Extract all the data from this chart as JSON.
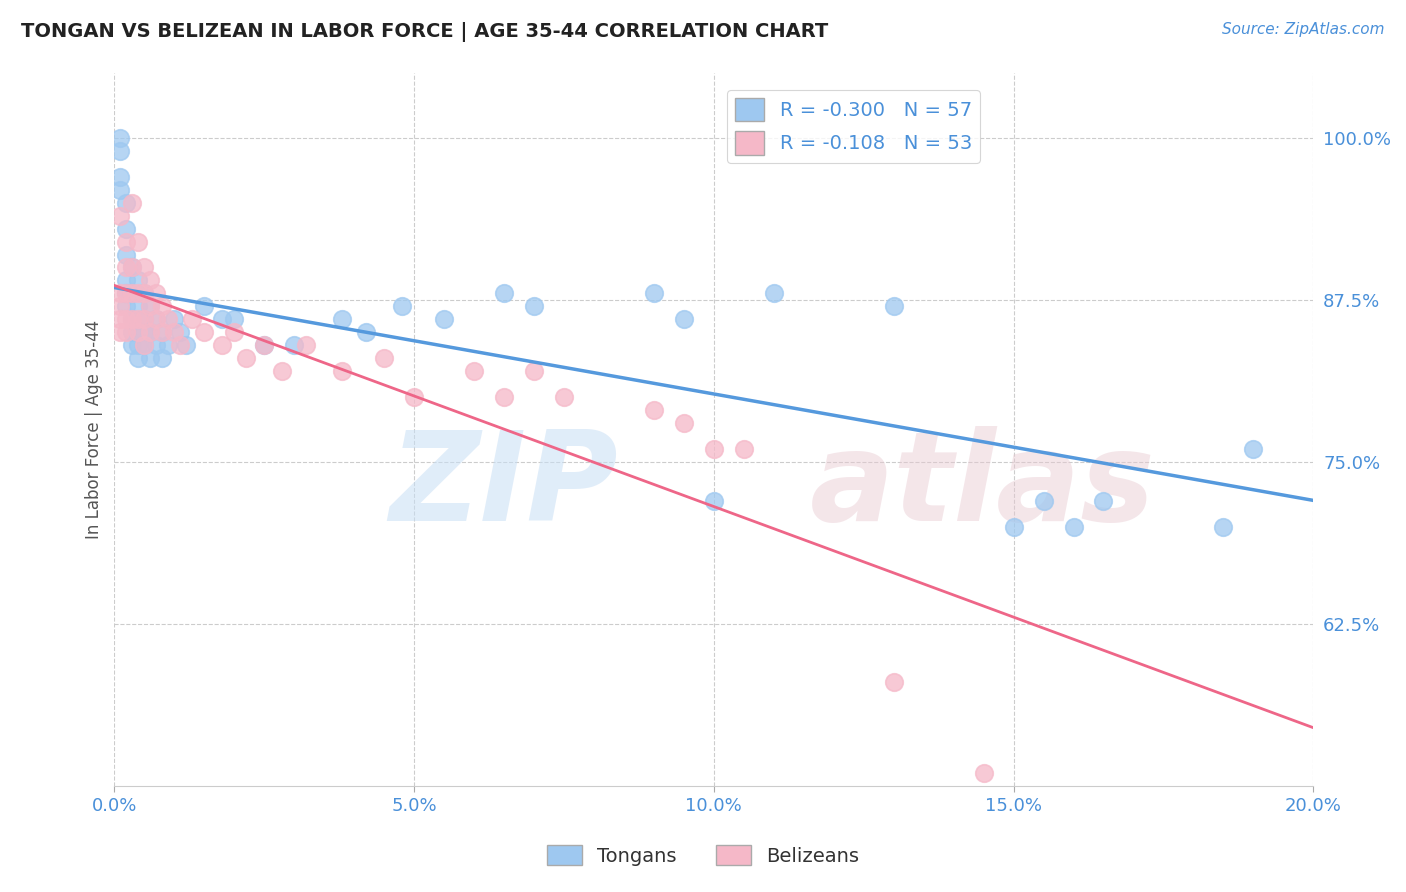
{
  "title": "TONGAN VS BELIZEAN IN LABOR FORCE | AGE 35-44 CORRELATION CHART",
  "source": "Source: ZipAtlas.com",
  "ylabel": "In Labor Force | Age 35-44",
  "xlim": [
    0.0,
    0.2
  ],
  "ylim": [
    0.5,
    1.05
  ],
  "xticks": [
    0.0,
    0.05,
    0.1,
    0.15,
    0.2
  ],
  "xtick_labels": [
    "0.0%",
    "5.0%",
    "10.0%",
    "15.0%",
    "20.0%"
  ],
  "yticks": [
    0.625,
    0.75,
    0.875,
    1.0
  ],
  "ytick_labels": [
    "62.5%",
    "75.0%",
    "87.5%",
    "100.0%"
  ],
  "blue_R": -0.3,
  "blue_N": 57,
  "pink_R": -0.108,
  "pink_N": 53,
  "blue_color": "#9ec8f0",
  "pink_color": "#f5b8c8",
  "blue_line_color": "#5599dd",
  "pink_line_color": "#ee6688",
  "legend_label_blue": "Tongans",
  "legend_label_pink": "Belizeans",
  "bg_color": "#ffffff",
  "grid_color": "#cccccc",
  "title_color": "#222222",
  "axis_color": "#4a90d9",
  "tick_color": "#4a90d9",
  "blue_x": [
    0.001,
    0.001,
    0.001,
    0.001,
    0.002,
    0.002,
    0.002,
    0.002,
    0.002,
    0.002,
    0.003,
    0.003,
    0.003,
    0.003,
    0.003,
    0.004,
    0.004,
    0.004,
    0.004,
    0.004,
    0.005,
    0.005,
    0.005,
    0.005,
    0.006,
    0.006,
    0.006,
    0.007,
    0.007,
    0.008,
    0.008,
    0.009,
    0.01,
    0.011,
    0.012,
    0.015,
    0.018,
    0.02,
    0.025,
    0.03,
    0.038,
    0.042,
    0.048,
    0.055,
    0.065,
    0.07,
    0.09,
    0.095,
    0.1,
    0.11,
    0.13,
    0.15,
    0.155,
    0.16,
    0.165,
    0.185,
    0.19
  ],
  "blue_y": [
    1.0,
    0.99,
    0.97,
    0.96,
    0.95,
    0.93,
    0.91,
    0.89,
    0.88,
    0.87,
    0.9,
    0.88,
    0.86,
    0.85,
    0.84,
    0.89,
    0.87,
    0.85,
    0.84,
    0.83,
    0.88,
    0.86,
    0.85,
    0.84,
    0.87,
    0.85,
    0.83,
    0.86,
    0.84,
    0.85,
    0.83,
    0.84,
    0.86,
    0.85,
    0.84,
    0.87,
    0.86,
    0.86,
    0.84,
    0.84,
    0.86,
    0.85,
    0.87,
    0.86,
    0.88,
    0.87,
    0.88,
    0.86,
    0.72,
    0.88,
    0.87,
    0.7,
    0.72,
    0.7,
    0.72,
    0.7,
    0.76
  ],
  "pink_x": [
    0.001,
    0.001,
    0.001,
    0.001,
    0.001,
    0.002,
    0.002,
    0.002,
    0.002,
    0.002,
    0.003,
    0.003,
    0.003,
    0.003,
    0.004,
    0.004,
    0.004,
    0.004,
    0.005,
    0.005,
    0.005,
    0.005,
    0.006,
    0.006,
    0.006,
    0.007,
    0.007,
    0.008,
    0.008,
    0.009,
    0.01,
    0.011,
    0.013,
    0.015,
    0.018,
    0.02,
    0.022,
    0.025,
    0.028,
    0.032,
    0.038,
    0.045,
    0.05,
    0.06,
    0.065,
    0.07,
    0.075,
    0.09,
    0.095,
    0.1,
    0.105,
    0.13,
    0.145
  ],
  "pink_y": [
    0.88,
    0.87,
    0.86,
    0.85,
    0.94,
    0.92,
    0.9,
    0.88,
    0.86,
    0.85,
    0.9,
    0.88,
    0.86,
    0.95,
    0.92,
    0.88,
    0.86,
    0.85,
    0.9,
    0.88,
    0.86,
    0.84,
    0.89,
    0.87,
    0.85,
    0.88,
    0.86,
    0.87,
    0.85,
    0.86,
    0.85,
    0.84,
    0.86,
    0.85,
    0.84,
    0.85,
    0.83,
    0.84,
    0.82,
    0.84,
    0.82,
    0.83,
    0.8,
    0.82,
    0.8,
    0.82,
    0.8,
    0.79,
    0.78,
    0.76,
    0.76,
    0.58,
    0.51
  ]
}
